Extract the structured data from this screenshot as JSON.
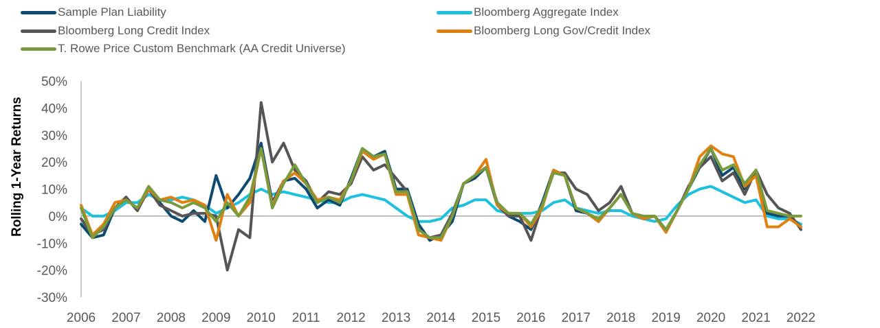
{
  "chart_data": {
    "type": "line",
    "title": "",
    "xlabel": "",
    "ylabel": "Rolling 1-Year Returns",
    "ylim": [
      -30,
      50
    ],
    "xlim": [
      2006,
      2022
    ],
    "y_ticks": [
      "50%",
      "40%",
      "30%",
      "20%",
      "10%",
      "0%",
      "-10%",
      "-20%",
      "-30%"
    ],
    "y_tick_values": [
      50,
      40,
      30,
      20,
      10,
      0,
      -10,
      -20,
      -30
    ],
    "x_ticks": [
      "2006",
      "2007",
      "2008",
      "2009",
      "2010",
      "2011",
      "2012",
      "2013",
      "2014",
      "2015",
      "2016",
      "2017",
      "2018",
      "2019",
      "2020",
      "2021",
      "2022"
    ],
    "x_tick_values": [
      2006,
      2007,
      2008,
      2009,
      2010,
      2011,
      2012,
      2013,
      2014,
      2015,
      2016,
      2017,
      2018,
      2019,
      2020,
      2021,
      2022
    ],
    "grid": false,
    "zero_line": true,
    "legend_position": "top",
    "x": [
      2006.0,
      2006.25,
      2006.5,
      2006.75,
      2007.0,
      2007.25,
      2007.5,
      2007.75,
      2008.0,
      2008.25,
      2008.5,
      2008.75,
      2009.0,
      2009.25,
      2009.5,
      2009.75,
      2010.0,
      2010.25,
      2010.5,
      2010.75,
      2011.0,
      2011.25,
      2011.5,
      2011.75,
      2012.0,
      2012.25,
      2012.5,
      2012.75,
      2013.0,
      2013.25,
      2013.5,
      2013.75,
      2014.0,
      2014.25,
      2014.5,
      2014.75,
      2015.0,
      2015.25,
      2015.5,
      2015.75,
      2016.0,
      2016.25,
      2016.5,
      2016.75,
      2017.0,
      2017.25,
      2017.5,
      2017.75,
      2018.0,
      2018.25,
      2018.5,
      2018.75,
      2019.0,
      2019.25,
      2019.5,
      2019.75,
      2020.0,
      2020.25,
      2020.5,
      2020.75,
      2021.0,
      2021.25,
      2021.5,
      2021.75,
      2022.0
    ],
    "series": [
      {
        "name": "Sample Plan Liability",
        "color": "#0c4a72",
        "values": [
          -3,
          -8,
          -7,
          3,
          7,
          2,
          10,
          5,
          0,
          -2,
          2,
          -2,
          15,
          3,
          8,
          14,
          27,
          5,
          13,
          14,
          10,
          3,
          6,
          4,
          14,
          25,
          22,
          24,
          10,
          10,
          -3,
          -9,
          -7,
          -2,
          12,
          14,
          18,
          5,
          0,
          -2,
          -5,
          5,
          17,
          15,
          2,
          1,
          -2,
          3,
          8,
          1,
          -1,
          0,
          -5,
          2,
          10,
          18,
          25,
          15,
          18,
          10,
          17,
          1,
          0,
          0,
          -4
        ],
        "line_width": 4
      },
      {
        "name": "Bloomberg Aggregate Index",
        "color": "#1ec0e0",
        "values": [
          3,
          0,
          0,
          2,
          5,
          5,
          8,
          6,
          6,
          7,
          6,
          4,
          1,
          3,
          5,
          8,
          10,
          8,
          9,
          8,
          7,
          6,
          5,
          5,
          7,
          8,
          7,
          6,
          3,
          0,
          -2,
          -2,
          -1,
          3,
          4,
          6,
          6,
          2,
          1,
          1,
          1,
          2,
          5,
          6,
          3,
          2,
          1,
          2,
          2,
          0,
          -1,
          -2,
          -1,
          4,
          8,
          10,
          11,
          9,
          7,
          5,
          6,
          0,
          -1,
          -1,
          -3
        ],
        "line_width": 4
      },
      {
        "name": "Bloomberg Long Credit Index",
        "color": "#555555",
        "values": [
          -1,
          -7,
          -5,
          3,
          7,
          2,
          10,
          4,
          2,
          0,
          1,
          1,
          0,
          -20,
          -5,
          -8,
          42,
          20,
          27,
          17,
          13,
          5,
          9,
          8,
          12,
          22,
          17,
          19,
          14,
          9,
          -5,
          -8,
          -7,
          1,
          12,
          15,
          18,
          4,
          0,
          0,
          -9,
          4,
          16,
          16,
          10,
          8,
          2,
          5,
          11,
          1,
          -1,
          0,
          -6,
          2,
          11,
          18,
          22,
          13,
          16,
          8,
          17,
          8,
          3,
          1,
          -5
        ],
        "line_width": 4
      },
      {
        "name": "Bloomberg Long Gov/Credit Index",
        "color": "#e08010",
        "values": [
          4,
          -7,
          -3,
          5,
          6,
          3,
          10,
          6,
          7,
          5,
          6,
          4,
          -9,
          8,
          0,
          5,
          25,
          4,
          13,
          16,
          12,
          6,
          7,
          6,
          13,
          24,
          21,
          23,
          8,
          8,
          -7,
          -8,
          -9,
          0,
          12,
          15,
          21,
          4,
          1,
          1,
          -4,
          3,
          17,
          15,
          3,
          1,
          -2,
          3,
          8,
          1,
          -1,
          0,
          -6,
          2,
          10,
          22,
          26,
          23,
          22,
          11,
          15,
          -4,
          -4,
          -1,
          -4
        ],
        "line_width": 4
      },
      {
        "name": "T. Rowe Price Custom Benchmark (AA Credit Universe)",
        "color": "#7a9a3e",
        "values": [
          3,
          -8,
          -4,
          3,
          6,
          3,
          11,
          6,
          5,
          3,
          5,
          3,
          -2,
          5,
          0,
          7,
          25,
          3,
          12,
          19,
          12,
          5,
          7,
          5,
          13,
          25,
          22,
          23,
          9,
          9,
          -5,
          -8,
          -8,
          0,
          12,
          15,
          18,
          5,
          1,
          1,
          -3,
          4,
          16,
          15,
          3,
          1,
          -1,
          3,
          8,
          1,
          0,
          0,
          -5,
          2,
          10,
          19,
          25,
          17,
          19,
          12,
          17,
          2,
          1,
          0,
          0
        ],
        "line_width": 4
      }
    ]
  },
  "legend": {
    "items": [
      {
        "label": "Sample Plan Liability",
        "color": "#0c4a72"
      },
      {
        "label": "Bloomberg Aggregate Index",
        "color": "#1ec0e0"
      },
      {
        "label": "Bloomberg Long Credit Index",
        "color": "#555555"
      },
      {
        "label": "Bloomberg Long Gov/Credit Index",
        "color": "#e08010"
      },
      {
        "label": "T. Rowe Price Custom Benchmark (AA Credit Universe)",
        "color": "#7a9a3e"
      }
    ]
  }
}
